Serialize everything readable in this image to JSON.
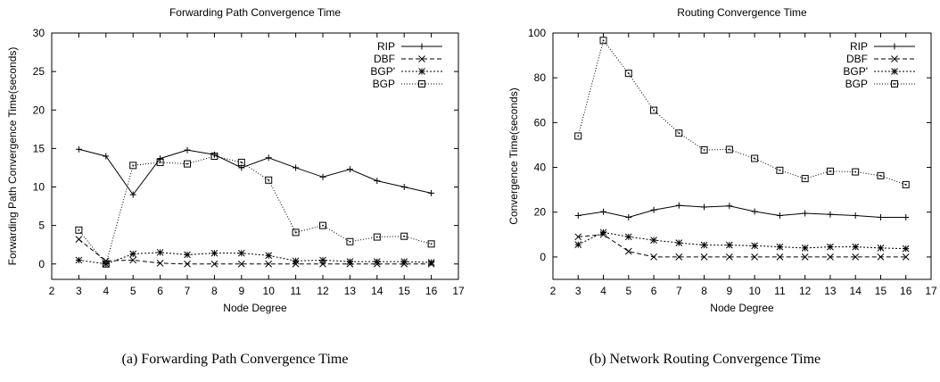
{
  "chart_data": [
    {
      "type": "line",
      "title": "Forwarding Path Convergence Time",
      "xlabel": "Node Degree",
      "ylabel": "Forwarding Path Convergence Time(seconds)",
      "xlim": [
        2,
        17
      ],
      "ylim": [
        -2,
        30
      ],
      "xticks": [
        2,
        3,
        4,
        5,
        6,
        7,
        8,
        9,
        10,
        11,
        12,
        13,
        14,
        15,
        16,
        17
      ],
      "yticks": [
        0,
        5,
        10,
        15,
        20,
        25,
        30
      ],
      "legend": "top-right",
      "grid": false,
      "x": [
        3,
        4,
        5,
        6,
        7,
        8,
        9,
        10,
        11,
        12,
        13,
        14,
        15,
        16
      ],
      "series": [
        {
          "name": "RIP",
          "marker": "plus",
          "dash": "",
          "values": [
            14.9,
            14.0,
            9.0,
            13.7,
            14.8,
            14.2,
            12.5,
            13.8,
            12.5,
            11.3,
            12.3,
            10.8,
            10.0,
            9.2
          ]
        },
        {
          "name": "DBF",
          "marker": "cross",
          "dash": "5,3",
          "values": [
            3.2,
            0.4,
            0.5,
            0.1,
            0.0,
            0.0,
            0.0,
            0.0,
            0.0,
            0.0,
            0.0,
            0.0,
            0.0,
            0.0
          ]
        },
        {
          "name": "BGP'",
          "marker": "star",
          "dash": "2,2",
          "values": [
            0.5,
            0.0,
            1.3,
            1.5,
            1.2,
            1.4,
            1.4,
            1.1,
            0.4,
            0.5,
            0.3,
            0.3,
            0.3,
            0.2
          ]
        },
        {
          "name": "BGP",
          "marker": "boxdot",
          "dash": "1,2",
          "values": [
            4.4,
            0.0,
            12.8,
            13.2,
            13.0,
            14.0,
            13.2,
            10.9,
            4.1,
            5.0,
            2.9,
            3.5,
            3.6,
            2.6
          ]
        }
      ]
    },
    {
      "type": "line",
      "title": "Routing Convergence Time",
      "xlabel": "Node Degree",
      "ylabel": "Convergence Time(seconds)",
      "xlim": [
        2,
        17
      ],
      "ylim": [
        -10,
        100
      ],
      "xticks": [
        2,
        3,
        4,
        5,
        6,
        7,
        8,
        9,
        10,
        11,
        12,
        13,
        14,
        15,
        16,
        17
      ],
      "yticks": [
        0,
        20,
        40,
        60,
        80,
        100
      ],
      "legend": "top-right",
      "grid": false,
      "x": [
        3,
        4,
        5,
        6,
        7,
        8,
        9,
        10,
        11,
        12,
        13,
        14,
        15,
        16
      ],
      "series": [
        {
          "name": "RIP",
          "marker": "plus",
          "dash": "",
          "values": [
            18.5,
            20.2,
            17.7,
            21.0,
            23.0,
            22.3,
            22.8,
            20.3,
            18.5,
            19.5,
            19.0,
            18.5,
            17.7,
            17.7
          ]
        },
        {
          "name": "DBF",
          "marker": "cross",
          "dash": "5,3",
          "values": [
            9.0,
            10.0,
            2.5,
            0.0,
            0.0,
            0.0,
            0.0,
            0.0,
            0.0,
            0.0,
            0.0,
            0.0,
            0.0,
            0.0
          ]
        },
        {
          "name": "BGP'",
          "marker": "star",
          "dash": "2,2",
          "values": [
            5.5,
            11.0,
            9.0,
            7.5,
            6.3,
            5.3,
            5.3,
            5.0,
            4.5,
            4.0,
            4.5,
            4.5,
            4.0,
            3.7
          ]
        },
        {
          "name": "BGP",
          "marker": "boxdot",
          "dash": "1,2",
          "values": [
            54.0,
            96.7,
            82.0,
            65.5,
            55.3,
            47.8,
            48.0,
            44.0,
            38.7,
            35.0,
            38.3,
            38.0,
            36.3,
            32.3
          ]
        }
      ]
    }
  ],
  "captions": {
    "a": "(a) Forwarding Path Convergence Time",
    "b": "(b) Network Routing Convergence Time"
  }
}
